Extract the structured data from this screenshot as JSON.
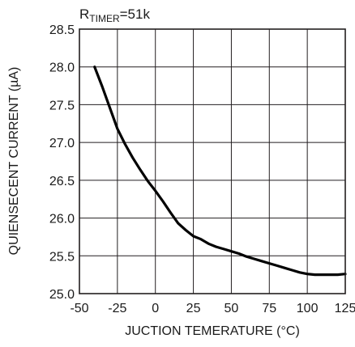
{
  "chart_data": {
    "type": "line",
    "condition": {
      "main": "R",
      "sub": "TIMER",
      "value": "=51k"
    },
    "xlabel": "JUCTION TEMERATURE (°C)",
    "ylabel": "QUIENSECENT CURRENT (µA)",
    "xlim": [
      -50,
      125
    ],
    "ylim": [
      25.0,
      28.5
    ],
    "x_ticks": [
      "-50",
      "-25",
      "0",
      "25",
      "50",
      "75",
      "100",
      "125"
    ],
    "y_ticks": [
      "28.5",
      "28.0",
      "27.5",
      "27.0",
      "26.5",
      "26.0",
      "25.5",
      "25.0"
    ],
    "grid": true,
    "series": [
      {
        "x": [
          -40,
          -35,
          -30,
          -25,
          -20,
          -15,
          -10,
          -5,
          0,
          5,
          10,
          15,
          20,
          25,
          30,
          35,
          40,
          45,
          50,
          55,
          60,
          65,
          70,
          75,
          80,
          85,
          90,
          95,
          100,
          105,
          110,
          115,
          120,
          125
        ],
        "y": [
          28.0,
          27.74,
          27.46,
          27.18,
          26.98,
          26.8,
          26.64,
          26.49,
          26.36,
          26.22,
          26.07,
          25.93,
          25.84,
          25.76,
          25.72,
          25.66,
          25.62,
          25.59,
          25.56,
          25.53,
          25.49,
          25.46,
          25.43,
          25.4,
          25.37,
          25.34,
          25.31,
          25.28,
          25.26,
          25.25,
          25.25,
          25.25,
          25.25,
          25.26
        ]
      }
    ]
  }
}
